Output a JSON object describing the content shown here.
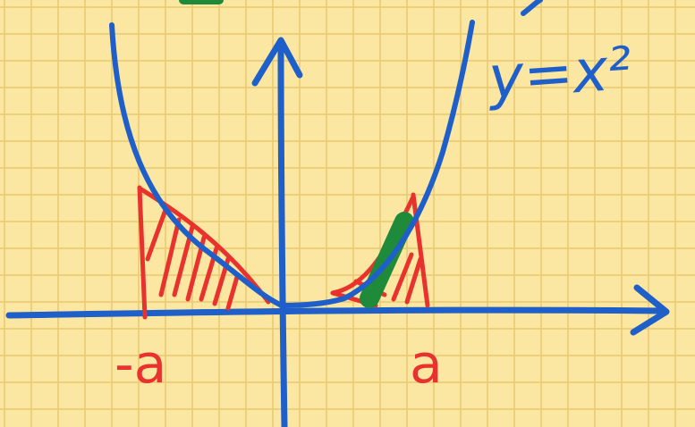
{
  "diagram": {
    "curve_label": "y=x²",
    "left_label": "-a",
    "right_label": "a"
  },
  "colors": {
    "paper": "#fbe6a2",
    "grid": "#e9c970",
    "ink_blue": "#1f5fc9",
    "ink_red": "#e8322d",
    "ink_green": "#1f8a3a"
  }
}
